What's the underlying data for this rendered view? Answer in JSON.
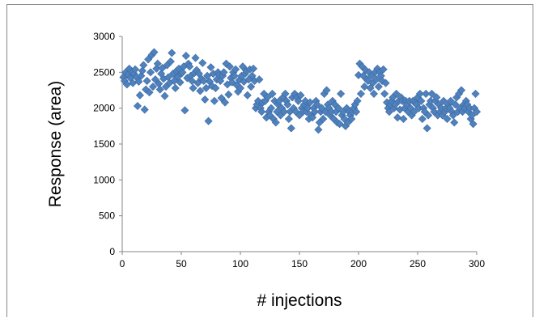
{
  "chart_data": {
    "type": "scatter",
    "title": "",
    "xlabel": "# injections",
    "ylabel": "Response (area)",
    "xlim": [
      0,
      300
    ],
    "ylim": [
      0,
      3000
    ],
    "x_ticks": [
      "0",
      "50",
      "100",
      "150",
      "200",
      "250",
      "300"
    ],
    "y_ticks": [
      "0",
      "500",
      "1000",
      "1500",
      "2000",
      "2500",
      "3000"
    ],
    "grid": false,
    "legend": "none",
    "marker": "diamond",
    "color": "#4f81bd",
    "series": [
      {
        "values": [
          [
            1,
            2430
          ],
          [
            2,
            2380
          ],
          [
            3,
            2500
          ],
          [
            4,
            2330
          ],
          [
            5,
            2470
          ],
          [
            6,
            2550
          ],
          [
            7,
            2420
          ],
          [
            8,
            2500
          ],
          [
            9,
            2350
          ],
          [
            10,
            2480
          ],
          [
            11,
            2540
          ],
          [
            12,
            2430
          ],
          [
            13,
            2030
          ],
          [
            14,
            2370
          ],
          [
            15,
            2180
          ],
          [
            16,
            2450
          ],
          [
            17,
            2520
          ],
          [
            18,
            2600
          ],
          [
            19,
            1980
          ],
          [
            20,
            2260
          ],
          [
            21,
            2380
          ],
          [
            22,
            2680
          ],
          [
            23,
            2220
          ],
          [
            24,
            2500
          ],
          [
            25,
            2740
          ],
          [
            26,
            2300
          ],
          [
            27,
            2780
          ],
          [
            28,
            2400
          ],
          [
            29,
            2550
          ],
          [
            30,
            2620
          ],
          [
            31,
            2340
          ],
          [
            32,
            2260
          ],
          [
            33,
            2480
          ],
          [
            34,
            2560
          ],
          [
            35,
            2410
          ],
          [
            36,
            2170
          ],
          [
            37,
            2300
          ],
          [
            38,
            2600
          ],
          [
            39,
            2430
          ],
          [
            40,
            2350
          ],
          [
            41,
            2650
          ],
          [
            42,
            2770
          ],
          [
            43,
            2480
          ],
          [
            44,
            2380
          ],
          [
            45,
            2280
          ],
          [
            46,
            2520
          ],
          [
            47,
            2440
          ],
          [
            48,
            2550
          ],
          [
            49,
            2360
          ],
          [
            50,
            2480
          ],
          [
            51,
            2500
          ],
          [
            52,
            2580
          ],
          [
            53,
            1970
          ],
          [
            54,
            2730
          ],
          [
            55,
            2420
          ],
          [
            56,
            2620
          ],
          [
            57,
            2580
          ],
          [
            58,
            2450
          ],
          [
            59,
            2380
          ],
          [
            60,
            2280
          ],
          [
            61,
            2490
          ],
          [
            62,
            2700
          ],
          [
            63,
            2530
          ],
          [
            64,
            2350
          ],
          [
            65,
            2480
          ],
          [
            66,
            2240
          ],
          [
            67,
            2410
          ],
          [
            68,
            2630
          ],
          [
            69,
            2380
          ],
          [
            70,
            2120
          ],
          [
            71,
            2280
          ],
          [
            72,
            2450
          ],
          [
            73,
            1820
          ],
          [
            74,
            2370
          ],
          [
            75,
            2570
          ],
          [
            76,
            2310
          ],
          [
            77,
            2480
          ],
          [
            78,
            2100
          ],
          [
            79,
            2280
          ],
          [
            80,
            2400
          ],
          [
            81,
            2500
          ],
          [
            82,
            2460
          ],
          [
            83,
            2380
          ],
          [
            84,
            2140
          ],
          [
            85,
            2450
          ],
          [
            86,
            2500
          ],
          [
            87,
            2080
          ],
          [
            88,
            2620
          ],
          [
            89,
            2330
          ],
          [
            90,
            2190
          ],
          [
            91,
            2580
          ],
          [
            92,
            2420
          ],
          [
            93,
            2360
          ],
          [
            94,
            2500
          ],
          [
            95,
            2450
          ],
          [
            96,
            2540
          ],
          [
            97,
            2320
          ],
          [
            98,
            2230
          ],
          [
            99,
            2390
          ],
          [
            100,
            2280
          ],
          [
            101,
            2450
          ],
          [
            102,
            2580
          ],
          [
            103,
            2370
          ],
          [
            104,
            2480
          ],
          [
            105,
            2520
          ],
          [
            106,
            2180
          ],
          [
            107,
            2400
          ],
          [
            108,
            2540
          ],
          [
            109,
            2300
          ],
          [
            110,
            2450
          ],
          [
            111,
            2550
          ],
          [
            112,
            2380
          ],
          [
            113,
            2000
          ],
          [
            114,
            2050
          ],
          [
            115,
            2100
          ],
          [
            116,
            2400
          ],
          [
            117,
            2000
          ],
          [
            118,
            1950
          ],
          [
            119,
            2080
          ],
          [
            120,
            2200
          ],
          [
            121,
            2100
          ],
          [
            122,
            1870
          ],
          [
            123,
            2150
          ],
          [
            124,
            1950
          ],
          [
            125,
            1900
          ],
          [
            126,
            2000
          ],
          [
            127,
            2200
          ],
          [
            128,
            1850
          ],
          [
            129,
            2100
          ],
          [
            130,
            1800
          ],
          [
            131,
            1950
          ],
          [
            132,
            2050
          ],
          [
            133,
            2100
          ],
          [
            134,
            1900
          ],
          [
            135,
            2000
          ],
          [
            136,
            2150
          ],
          [
            137,
            1950
          ],
          [
            138,
            2200
          ],
          [
            139,
            2100
          ],
          [
            140,
            2050
          ],
          [
            141,
            1850
          ],
          [
            142,
            1950
          ],
          [
            143,
            1720
          ],
          [
            144,
            2150
          ],
          [
            145,
            2000
          ],
          [
            146,
            2200
          ],
          [
            147,
            1950
          ],
          [
            148,
            2150
          ],
          [
            149,
            2100
          ],
          [
            150,
            1900
          ],
          [
            151,
            2180
          ],
          [
            152,
            2000
          ],
          [
            153,
            1950
          ],
          [
            154,
            2050
          ],
          [
            155,
            2100
          ],
          [
            156,
            1950
          ],
          [
            157,
            2000
          ],
          [
            158,
            1850
          ],
          [
            159,
            2080
          ],
          [
            160,
            1900
          ],
          [
            161,
            1870
          ],
          [
            162,
            2000
          ],
          [
            163,
            1950
          ],
          [
            164,
            2100
          ],
          [
            165,
            2050
          ],
          [
            166,
            1700
          ],
          [
            167,
            1800
          ],
          [
            168,
            1950
          ],
          [
            169,
            2000
          ],
          [
            170,
            1850
          ],
          [
            171,
            2200
          ],
          [
            172,
            1950
          ],
          [
            173,
            2250
          ],
          [
            174,
            2050
          ],
          [
            175,
            2000
          ],
          [
            176,
            1900
          ],
          [
            177,
            1950
          ],
          [
            178,
            2100
          ],
          [
            179,
            1850
          ],
          [
            180,
            2050
          ],
          [
            181,
            1950
          ],
          [
            182,
            1800
          ],
          [
            183,
            2000
          ],
          [
            184,
            1780
          ],
          [
            185,
            2200
          ],
          [
            186,
            1900
          ],
          [
            187,
            1950
          ],
          [
            188,
            1850
          ],
          [
            189,
            1750
          ],
          [
            190,
            2000
          ],
          [
            191,
            1800
          ],
          [
            192,
            1950
          ],
          [
            193,
            1900
          ],
          [
            194,
            1850
          ],
          [
            195,
            1950
          ],
          [
            196,
            2000
          ],
          [
            197,
            2050
          ],
          [
            198,
            1950
          ],
          [
            199,
            2100
          ],
          [
            200,
            2460
          ],
          [
            201,
            2620
          ],
          [
            202,
            2200
          ],
          [
            203,
            2580
          ],
          [
            204,
            2450
          ],
          [
            205,
            2300
          ],
          [
            206,
            2530
          ],
          [
            207,
            2400
          ],
          [
            208,
            2380
          ],
          [
            209,
            2500
          ],
          [
            210,
            2280
          ],
          [
            211,
            2450
          ],
          [
            212,
            2350
          ],
          [
            213,
            2200
          ],
          [
            214,
            2500
          ],
          [
            215,
            2400
          ],
          [
            216,
            2550
          ],
          [
            217,
            2300
          ],
          [
            218,
            2500
          ],
          [
            219,
            2450
          ],
          [
            220,
            2380
          ],
          [
            221,
            2540
          ],
          [
            222,
            2200
          ],
          [
            223,
            2350
          ],
          [
            224,
            2080
          ],
          [
            225,
            2000
          ],
          [
            226,
            1950
          ],
          [
            227,
            2050
          ],
          [
            228,
            2100
          ],
          [
            229,
            2150
          ],
          [
            230,
            2000
          ],
          [
            231,
            2050
          ],
          [
            232,
            2200
          ],
          [
            233,
            1870
          ],
          [
            234,
            2100
          ],
          [
            235,
            1980
          ],
          [
            236,
            2150
          ],
          [
            237,
            2100
          ],
          [
            238,
            1850
          ],
          [
            239,
            2000
          ],
          [
            240,
            2100
          ],
          [
            241,
            2050
          ],
          [
            242,
            1950
          ],
          [
            243,
            2100
          ],
          [
            244,
            2000
          ],
          [
            245,
            1900
          ],
          [
            246,
            2100
          ],
          [
            247,
            1950
          ],
          [
            248,
            2080
          ],
          [
            249,
            2050
          ],
          [
            250,
            2150
          ],
          [
            251,
            2000
          ],
          [
            252,
            2200
          ],
          [
            253,
            2100
          ],
          [
            254,
            1850
          ],
          [
            255,
            2000
          ],
          [
            256,
            1950
          ],
          [
            257,
            2200
          ],
          [
            258,
            1720
          ],
          [
            259,
            1900
          ],
          [
            260,
            2050
          ],
          [
            261,
            2100
          ],
          [
            262,
            2200
          ],
          [
            263,
            2000
          ],
          [
            264,
            1950
          ],
          [
            265,
            2100
          ],
          [
            266,
            2150
          ],
          [
            267,
            1900
          ],
          [
            268,
            2050
          ],
          [
            269,
            1950
          ],
          [
            270,
            2000
          ],
          [
            271,
            1900
          ],
          [
            272,
            2100
          ],
          [
            273,
            1950
          ],
          [
            274,
            2000
          ],
          [
            275,
            1850
          ],
          [
            276,
            2050
          ],
          [
            277,
            2000
          ],
          [
            278,
            2100
          ],
          [
            279,
            1950
          ],
          [
            280,
            1900
          ],
          [
            281,
            1800
          ],
          [
            282,
            2050
          ],
          [
            283,
            2150
          ],
          [
            284,
            1950
          ],
          [
            285,
            2200
          ],
          [
            286,
            2000
          ],
          [
            287,
            2250
          ],
          [
            288,
            1950
          ],
          [
            289,
            2050
          ],
          [
            290,
            2000
          ],
          [
            291,
            2100
          ],
          [
            292,
            2050
          ],
          [
            293,
            1950
          ],
          [
            294,
            2000
          ],
          [
            295,
            1850
          ],
          [
            296,
            1900
          ],
          [
            297,
            1780
          ],
          [
            298,
            2000
          ],
          [
            299,
            2200
          ],
          [
            300,
            1950
          ]
        ]
      }
    ]
  }
}
